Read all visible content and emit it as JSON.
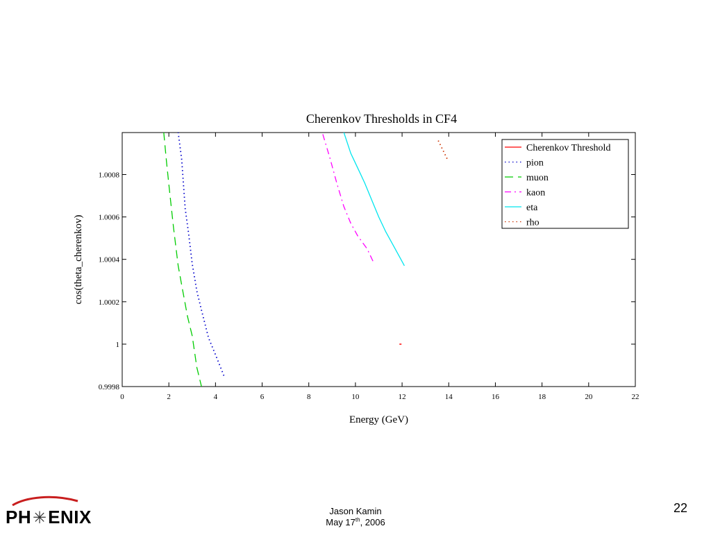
{
  "chart_data": {
    "type": "line",
    "title": "Cherenkov Thresholds in CF4",
    "xlabel": "Energy (GeV)",
    "ylabel": "cos(theta_cherenkov)",
    "xlim": [
      0,
      22
    ],
    "ylim": [
      0.9998,
      1.000998
    ],
    "x_ticks": [
      0,
      2,
      4,
      6,
      8,
      10,
      12,
      14,
      16,
      18,
      20,
      22
    ],
    "x_tick_labels": [
      "0",
      "2",
      "4",
      "6",
      "8",
      "10",
      "12",
      "14",
      "16",
      "18",
      "20",
      "22"
    ],
    "y_ticks": [
      0.9998,
      1.0,
      1.0002,
      1.0004,
      1.0006,
      1.0008
    ],
    "y_tick_labels": [
      "0.9998",
      "1",
      "1.0002",
      "1.0004",
      "1.0006",
      "1.0008"
    ],
    "grid": false,
    "legend_position": "top-right",
    "series": [
      {
        "name": "Cherenkov Threshold",
        "color": "#ff0000",
        "style": "solid",
        "x": [
          11.93
        ],
        "y": [
          1.0
        ]
      },
      {
        "name": "pion",
        "color": "#0000cc",
        "style": "dotted",
        "x": [
          2.4,
          2.55,
          2.7,
          2.85,
          3.0,
          3.2,
          3.4,
          3.7,
          4.0,
          4.4
        ],
        "y": [
          1.001,
          1.00087,
          1.00064,
          1.00052,
          1.00038,
          1.00025,
          1.00016,
          1.00003,
          0.99995,
          0.99984
        ]
      },
      {
        "name": "muon",
        "color": "#00cc00",
        "style": "dashed",
        "x": [
          1.78,
          1.9,
          2.05,
          2.2,
          2.4,
          2.6,
          2.8,
          3.0,
          3.2,
          3.4
        ],
        "y": [
          1.001,
          1.00086,
          1.0007,
          1.00055,
          1.00037,
          1.00025,
          1.00013,
          1.00004,
          0.99989,
          0.9998
        ]
      },
      {
        "name": "kaon",
        "color": "#ff00ff",
        "style": "dashdot",
        "x": [
          8.6,
          8.9,
          9.2,
          9.5,
          9.8,
          10.1,
          10.5,
          10.8
        ],
        "y": [
          1.00099,
          1.00088,
          1.00076,
          1.00065,
          1.00057,
          1.00051,
          1.00045,
          1.00038
        ]
      },
      {
        "name": "eta",
        "color": "#00e5ee",
        "style": "solid",
        "x": [
          9.5,
          9.8,
          10.1,
          10.4,
          10.7,
          11.0,
          11.3,
          11.6,
          11.9,
          12.1
        ],
        "y": [
          1.001,
          1.0009,
          1.00083,
          1.00076,
          1.00068,
          1.0006,
          1.00053,
          1.00047,
          1.00041,
          1.00037
        ]
      },
      {
        "name": "rho",
        "color": "#cc3300",
        "style": "dotted",
        "x": [
          13.55,
          13.95
        ],
        "y": [
          1.00096,
          1.00087
        ]
      }
    ]
  },
  "footer": {
    "logo_text_left": "PH",
    "logo_text_right": "ENIX",
    "logo_star": "✳",
    "author": "Jason Kamin",
    "date_prefix": "May 17",
    "date_sup": "th",
    "date_suffix": ", 2006",
    "page_number": "22"
  }
}
